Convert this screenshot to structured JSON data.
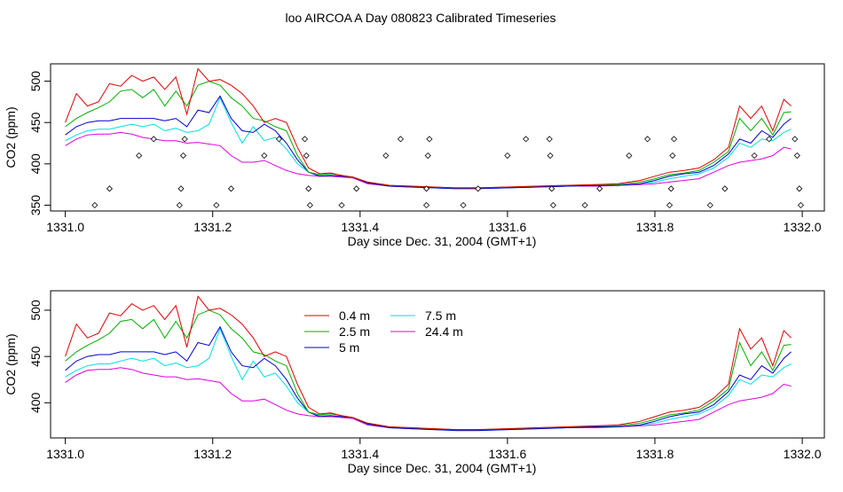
{
  "title": "loo AIRCOA A  Day 080823  Calibrated Timeseries",
  "chart_data": [
    {
      "type": "line",
      "xlabel": "Day since Dec. 31, 2004 (GMT+1)",
      "ylabel": "CO2 (ppm)",
      "xlim": [
        1330.98,
        1332.03
      ],
      "ylim": [
        343,
        521
      ],
      "xticks": [
        1331.0,
        1331.2,
        1331.4,
        1331.6,
        1331.8,
        1332.0
      ],
      "xtick_labels": [
        "1331.0",
        "1331.2",
        "1331.4",
        "1331.6",
        "1331.8",
        "1332.0"
      ],
      "yticks": [
        350,
        400,
        450,
        500
      ],
      "ytick_labels": [
        "350",
        "400",
        "450",
        "500"
      ],
      "legend": null,
      "x": [
        1331.0,
        1331.015,
        1331.03,
        1331.045,
        1331.06,
        1331.075,
        1331.09,
        1331.105,
        1331.12,
        1331.135,
        1331.15,
        1331.165,
        1331.18,
        1331.195,
        1331.21,
        1331.225,
        1331.24,
        1331.255,
        1331.27,
        1331.285,
        1331.3,
        1331.315,
        1331.33,
        1331.345,
        1331.36,
        1331.375,
        1331.39,
        1331.41,
        1331.44,
        1331.47,
        1331.5,
        1331.53,
        1331.56,
        1331.6,
        1331.64,
        1331.68,
        1331.72,
        1331.75,
        1331.78,
        1331.8,
        1331.82,
        1331.84,
        1331.86,
        1331.88,
        1331.9,
        1331.915,
        1331.93,
        1331.945,
        1331.96,
        1331.975,
        1331.985
      ],
      "series": [
        {
          "name": "0.4 m",
          "color": "#e00000",
          "values": [
            450,
            485,
            470,
            475,
            497,
            494,
            507,
            500,
            505,
            490,
            505,
            460,
            515,
            500,
            502,
            495,
            485,
            470,
            450,
            455,
            450,
            420,
            395,
            388,
            389,
            386,
            384,
            378,
            374,
            373,
            372,
            371,
            371,
            372,
            373,
            374,
            375,
            376,
            380,
            385,
            390,
            392,
            395,
            405,
            420,
            470,
            455,
            470,
            440,
            478,
            470
          ]
        },
        {
          "name": "2.5 m",
          "color": "#00b000",
          "values": [
            445,
            455,
            462,
            468,
            475,
            488,
            490,
            480,
            490,
            470,
            488,
            470,
            495,
            500,
            495,
            480,
            470,
            455,
            452,
            445,
            440,
            410,
            390,
            387,
            388,
            386,
            384,
            378,
            374,
            373,
            372,
            371,
            371,
            372,
            373,
            374,
            375,
            375,
            378,
            382,
            387,
            389,
            392,
            402,
            415,
            455,
            440,
            455,
            435,
            462,
            463
          ]
        },
        {
          "name": "5 m",
          "color": "#0000d0",
          "values": [
            435,
            445,
            450,
            452,
            452,
            455,
            455,
            455,
            455,
            452,
            455,
            445,
            465,
            462,
            482,
            455,
            440,
            438,
            448,
            440,
            425,
            405,
            390,
            385,
            386,
            385,
            384,
            377,
            373,
            372,
            371,
            370,
            370,
            371,
            372,
            373,
            374,
            374,
            376,
            380,
            385,
            388,
            390,
            398,
            412,
            430,
            425,
            440,
            432,
            448,
            455
          ]
        },
        {
          "name": "7.5 m",
          "color": "#00e0e0",
          "values": [
            428,
            435,
            440,
            442,
            442,
            445,
            448,
            445,
            448,
            440,
            443,
            438,
            440,
            448,
            480,
            450,
            425,
            445,
            428,
            432,
            418,
            400,
            390,
            386,
            386,
            385,
            384,
            377,
            373,
            372,
            371,
            370,
            370,
            371,
            372,
            373,
            374,
            374,
            376,
            378,
            382,
            385,
            388,
            395,
            408,
            425,
            420,
            430,
            428,
            438,
            442
          ]
        },
        {
          "name": "24.4 m",
          "color": "#e000e0",
          "values": [
            422,
            430,
            435,
            436,
            436,
            438,
            436,
            432,
            430,
            428,
            428,
            425,
            426,
            424,
            422,
            410,
            402,
            402,
            404,
            398,
            392,
            388,
            386,
            385,
            385,
            384,
            383,
            376,
            373,
            372,
            371,
            370,
            370,
            371,
            372,
            373,
            373,
            374,
            375,
            376,
            378,
            380,
            382,
            390,
            398,
            402,
            404,
            406,
            410,
            420,
            418
          ]
        }
      ],
      "markers": [
        {
          "x": 1331.04,
          "y": 350
        },
        {
          "x": 1331.06,
          "y": 370
        },
        {
          "x": 1331.1,
          "y": 410
        },
        {
          "x": 1331.12,
          "y": 430
        },
        {
          "x": 1331.155,
          "y": 350
        },
        {
          "x": 1331.157,
          "y": 370
        },
        {
          "x": 1331.16,
          "y": 410
        },
        {
          "x": 1331.162,
          "y": 430
        },
        {
          "x": 1331.205,
          "y": 350
        },
        {
          "x": 1331.225,
          "y": 370
        },
        {
          "x": 1331.27,
          "y": 410
        },
        {
          "x": 1331.29,
          "y": 430
        },
        {
          "x": 1331.325,
          "y": 430
        },
        {
          "x": 1331.327,
          "y": 410
        },
        {
          "x": 1331.33,
          "y": 370
        },
        {
          "x": 1331.332,
          "y": 350
        },
        {
          "x": 1331.375,
          "y": 350
        },
        {
          "x": 1331.395,
          "y": 370
        },
        {
          "x": 1331.435,
          "y": 410
        },
        {
          "x": 1331.455,
          "y": 430
        },
        {
          "x": 1331.49,
          "y": 350
        },
        {
          "x": 1331.49,
          "y": 370
        },
        {
          "x": 1331.492,
          "y": 410
        },
        {
          "x": 1331.494,
          "y": 430
        },
        {
          "x": 1331.54,
          "y": 350
        },
        {
          "x": 1331.56,
          "y": 370
        },
        {
          "x": 1331.6,
          "y": 410
        },
        {
          "x": 1331.625,
          "y": 430
        },
        {
          "x": 1331.657,
          "y": 430
        },
        {
          "x": 1331.658,
          "y": 410
        },
        {
          "x": 1331.66,
          "y": 370
        },
        {
          "x": 1331.662,
          "y": 350
        },
        {
          "x": 1331.705,
          "y": 350
        },
        {
          "x": 1331.725,
          "y": 370
        },
        {
          "x": 1331.765,
          "y": 410
        },
        {
          "x": 1331.79,
          "y": 430
        },
        {
          "x": 1331.82,
          "y": 350
        },
        {
          "x": 1331.822,
          "y": 370
        },
        {
          "x": 1331.824,
          "y": 410
        },
        {
          "x": 1331.826,
          "y": 430
        },
        {
          "x": 1331.875,
          "y": 350
        },
        {
          "x": 1331.895,
          "y": 370
        },
        {
          "x": 1331.935,
          "y": 410
        },
        {
          "x": 1331.955,
          "y": 430
        },
        {
          "x": 1331.99,
          "y": 430
        },
        {
          "x": 1331.993,
          "y": 410
        },
        {
          "x": 1331.996,
          "y": 370
        },
        {
          "x": 1331.998,
          "y": 350
        }
      ]
    },
    {
      "type": "line",
      "xlabel": "Day since Dec. 31, 2004 (GMT+1)",
      "ylabel": "CO2 (ppm)",
      "xlim": [
        1330.98,
        1332.03
      ],
      "ylim": [
        362,
        521
      ],
      "xticks": [
        1331.0,
        1331.2,
        1331.4,
        1331.6,
        1331.8,
        1332.0
      ],
      "xtick_labels": [
        "1331.0",
        "1331.2",
        "1331.4",
        "1331.6",
        "1331.8",
        "1332.0"
      ],
      "yticks": [
        400,
        450,
        500
      ],
      "ytick_labels": [
        "400",
        "450",
        "500"
      ],
      "legend": "top-left",
      "legend_entries": [
        "0.4 m",
        "2.5 m",
        "5 m",
        "7.5 m",
        "24.4 m"
      ],
      "x": [
        1331.0,
        1331.015,
        1331.03,
        1331.045,
        1331.06,
        1331.075,
        1331.09,
        1331.105,
        1331.12,
        1331.135,
        1331.15,
        1331.165,
        1331.18,
        1331.195,
        1331.21,
        1331.225,
        1331.24,
        1331.255,
        1331.27,
        1331.285,
        1331.3,
        1331.315,
        1331.33,
        1331.345,
        1331.36,
        1331.375,
        1331.39,
        1331.41,
        1331.44,
        1331.47,
        1331.5,
        1331.53,
        1331.56,
        1331.6,
        1331.64,
        1331.68,
        1331.72,
        1331.75,
        1331.78,
        1331.8,
        1331.82,
        1331.84,
        1331.86,
        1331.88,
        1331.9,
        1331.915,
        1331.93,
        1331.945,
        1331.96,
        1331.975,
        1331.985
      ],
      "series": [
        {
          "name": "0.4 m",
          "color": "#e00000",
          "values": [
            450,
            485,
            470,
            475,
            497,
            494,
            507,
            500,
            505,
            490,
            505,
            460,
            515,
            500,
            502,
            495,
            485,
            470,
            450,
            455,
            450,
            420,
            395,
            388,
            389,
            386,
            384,
            378,
            374,
            373,
            372,
            371,
            371,
            372,
            373,
            374,
            375,
            376,
            380,
            385,
            390,
            392,
            395,
            405,
            420,
            480,
            458,
            470,
            440,
            478,
            470
          ]
        },
        {
          "name": "2.5 m",
          "color": "#00b000",
          "values": [
            445,
            455,
            462,
            468,
            475,
            488,
            490,
            480,
            490,
            470,
            488,
            470,
            495,
            500,
            495,
            480,
            470,
            455,
            452,
            445,
            440,
            410,
            390,
            387,
            388,
            386,
            384,
            378,
            374,
            373,
            372,
            371,
            371,
            372,
            373,
            374,
            375,
            375,
            378,
            382,
            387,
            389,
            392,
            402,
            415,
            465,
            440,
            455,
            435,
            462,
            463
          ]
        },
        {
          "name": "5 m",
          "color": "#0000d0",
          "values": [
            435,
            445,
            450,
            452,
            452,
            455,
            455,
            455,
            455,
            452,
            455,
            445,
            465,
            462,
            482,
            455,
            440,
            438,
            448,
            440,
            425,
            405,
            390,
            385,
            386,
            385,
            384,
            377,
            373,
            372,
            371,
            370,
            370,
            371,
            372,
            373,
            374,
            374,
            376,
            380,
            385,
            388,
            390,
            398,
            412,
            430,
            425,
            440,
            432,
            448,
            455
          ]
        },
        {
          "name": "7.5 m",
          "color": "#00e0e0",
          "values": [
            428,
            435,
            440,
            442,
            442,
            445,
            448,
            445,
            448,
            440,
            443,
            438,
            440,
            448,
            480,
            450,
            425,
            445,
            428,
            432,
            418,
            400,
            390,
            386,
            386,
            385,
            384,
            377,
            373,
            372,
            371,
            370,
            370,
            371,
            372,
            373,
            374,
            374,
            376,
            378,
            382,
            385,
            388,
            395,
            408,
            425,
            420,
            430,
            428,
            438,
            442
          ]
        },
        {
          "name": "24.4 m",
          "color": "#e000e0",
          "values": [
            422,
            430,
            435,
            436,
            436,
            438,
            436,
            432,
            430,
            428,
            428,
            425,
            426,
            424,
            422,
            410,
            402,
            402,
            404,
            398,
            392,
            388,
            386,
            385,
            385,
            384,
            383,
            376,
            373,
            372,
            371,
            370,
            370,
            371,
            372,
            373,
            373,
            374,
            375,
            376,
            378,
            380,
            382,
            390,
            398,
            402,
            404,
            406,
            410,
            420,
            418
          ]
        }
      ]
    }
  ]
}
